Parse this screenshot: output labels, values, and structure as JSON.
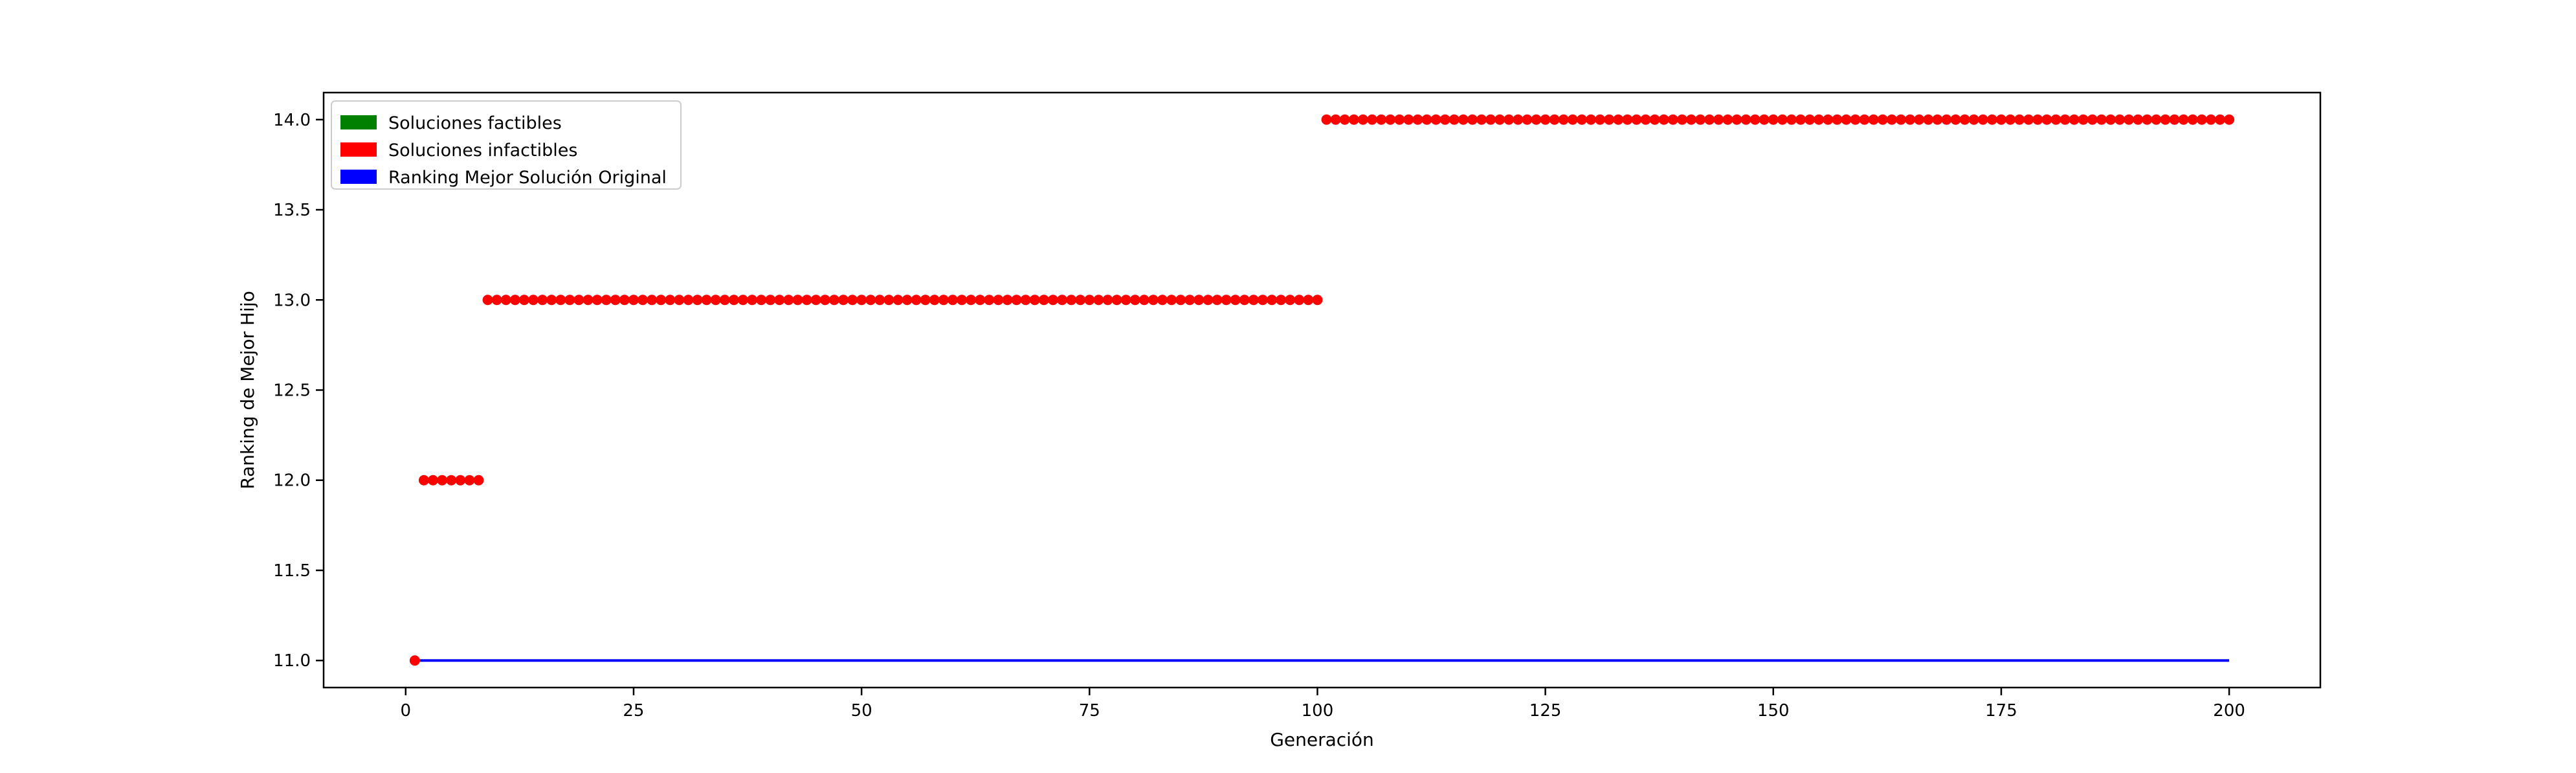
{
  "chart_data": {
    "type": "scatter",
    "xlabel": "Generación",
    "ylabel": "Ranking de Mejor Hijo",
    "xlim": [
      -9,
      210
    ],
    "ylim": [
      10.85,
      14.15
    ],
    "xticks": [
      0,
      25,
      50,
      75,
      100,
      125,
      150,
      175,
      200
    ],
    "yticks": [
      11.0,
      11.5,
      12.0,
      12.5,
      13.0,
      13.5,
      14.0
    ],
    "ytick_labels": [
      "11.0",
      "11.5",
      "12.0",
      "12.5",
      "13.0",
      "13.5",
      "14.0"
    ],
    "legend": {
      "position": "top-left",
      "entries": [
        {
          "label": "Soluciones factibles",
          "color": "#008000"
        },
        {
          "label": "Soluciones infactibles",
          "color": "#ff0000"
        },
        {
          "label": "Ranking Mejor Solución Original",
          "color": "#0000ff"
        }
      ]
    },
    "series": [
      {
        "name": "Soluciones infactibles",
        "color": "#ff0000",
        "segments": [
          {
            "x_from": 1,
            "x_to": 1,
            "y": 11.0
          },
          {
            "x_from": 2,
            "x_to": 8,
            "y": 12.0
          },
          {
            "x_from": 9,
            "x_to": 100,
            "y": 13.0
          },
          {
            "x_from": 101,
            "x_to": 200,
            "y": 14.0
          }
        ]
      },
      {
        "name": "Ranking Mejor Solución Original",
        "type": "line",
        "color": "#0000ff",
        "x": [
          1,
          200
        ],
        "y": [
          11.0,
          11.0
        ]
      }
    ]
  }
}
